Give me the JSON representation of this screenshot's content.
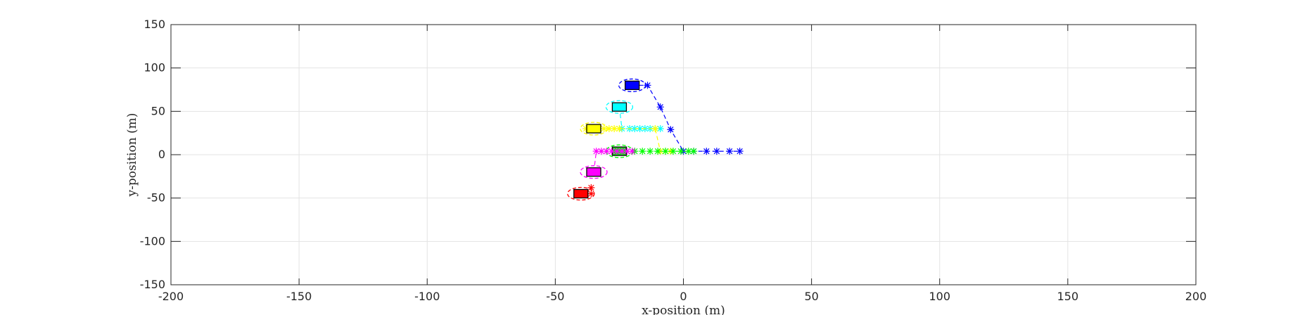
{
  "chart_data": {
    "type": "scatter",
    "title": "",
    "xlabel": "x-position (m)",
    "ylabel": "y-position (m)",
    "xlim": [
      -200,
      200
    ],
    "ylim": [
      -150,
      150
    ],
    "xticks": [
      -200,
      -150,
      -100,
      -50,
      0,
      50,
      100,
      150,
      200
    ],
    "yticks": [
      -150,
      -100,
      -50,
      0,
      50,
      100,
      150
    ],
    "grid": true,
    "legend": "none",
    "series": [
      {
        "color": "#0000ff",
        "vehicle": {
          "x": -20,
          "y": 80
        },
        "path": [
          [
            -20,
            80
          ],
          [
            -14,
            80
          ],
          [
            -9,
            55
          ],
          [
            -5,
            29
          ],
          [
            0,
            4
          ],
          [
            4,
            4
          ],
          [
            9,
            4
          ],
          [
            13,
            4
          ],
          [
            18,
            4
          ],
          [
            22,
            4
          ]
        ]
      },
      {
        "color": "#00ffff",
        "vehicle": {
          "x": -25,
          "y": 55
        },
        "path": [
          [
            -25,
            55
          ],
          [
            -24,
            30
          ],
          [
            -21,
            30
          ],
          [
            -19,
            30
          ],
          [
            -17,
            30
          ],
          [
            -15,
            30
          ],
          [
            -13,
            30
          ],
          [
            -11,
            30
          ],
          [
            -9,
            30
          ]
        ]
      },
      {
        "color": "#ffff00",
        "vehicle": {
          "x": -35,
          "y": 30
        },
        "path": [
          [
            -35,
            30
          ],
          [
            -38,
            30
          ],
          [
            -33,
            30
          ],
          [
            -31,
            30
          ],
          [
            -29,
            30
          ],
          [
            -27,
            30
          ],
          [
            -25,
            30
          ],
          [
            -11,
            30
          ],
          [
            -9,
            4
          ],
          [
            -7,
            4
          ],
          [
            -5,
            4
          ]
        ]
      },
      {
        "color": "#00ff00",
        "vehicle": {
          "x": -25,
          "y": 4
        },
        "path": [
          [
            -25,
            4
          ],
          [
            -22,
            4
          ],
          [
            -19,
            4
          ],
          [
            -16,
            4
          ],
          [
            -13,
            4
          ],
          [
            -10,
            4
          ],
          [
            -7,
            4
          ],
          [
            -4,
            4
          ],
          [
            -1,
            4
          ],
          [
            2,
            4
          ],
          [
            4,
            4
          ]
        ]
      },
      {
        "color": "#ff00ff",
        "vehicle": {
          "x": -35,
          "y": -20
        },
        "path": [
          [
            -35,
            -20
          ],
          [
            -34,
            4
          ],
          [
            -32,
            4
          ],
          [
            -30,
            4
          ],
          [
            -28,
            4
          ],
          [
            -26,
            4
          ],
          [
            -24,
            4
          ],
          [
            -22,
            4
          ],
          [
            -20,
            4
          ]
        ]
      },
      {
        "color": "#ff0000",
        "vehicle": {
          "x": -40,
          "y": -45
        },
        "path": [
          [
            -40,
            -45
          ],
          [
            -36,
            -45
          ],
          [
            -36,
            -38
          ]
        ]
      }
    ]
  }
}
